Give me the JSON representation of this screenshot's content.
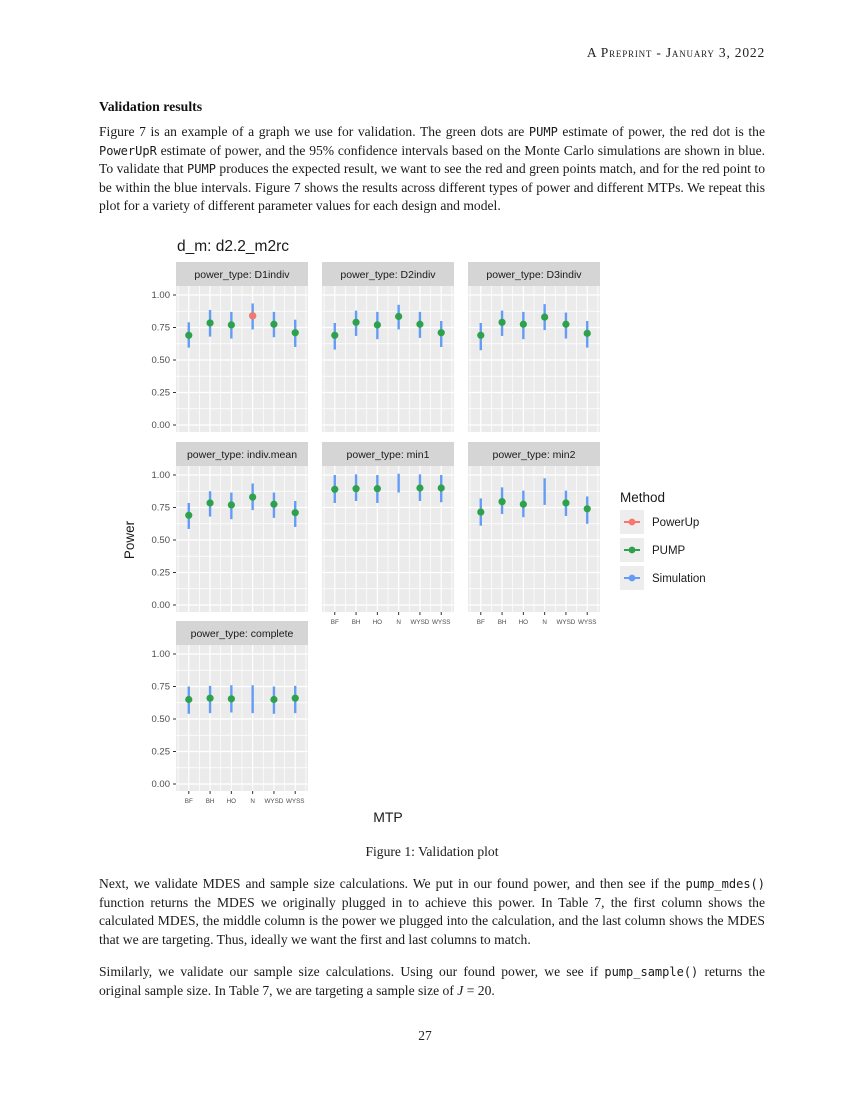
{
  "header": {
    "text": "A Preprint - January 3, 2022"
  },
  "section": {
    "heading": "Validation results"
  },
  "paragraphs": [
    [
      {
        "t": "Figure 7 is an example of a graph we use for validation.  The green dots are "
      },
      {
        "c": "PUMP"
      },
      {
        "t": " estimate of power, the red dot is the "
      },
      {
        "c": "PowerUpR"
      },
      {
        "t": " estimate of power, and the 95% confidence intervals based on the Monte Carlo simulations are shown in blue.  To validate that "
      },
      {
        "c": "PUMP"
      },
      {
        "t": " produces the expected result, we want to see the red and green points match, and for the red point to be within the blue intervals.  Figure 7 shows the results across different types of power and different MTPs.  We repeat this plot for a variety of different parameter values for each design and model."
      }
    ],
    [
      {
        "t": "Next, we validate MDES and sample size calculations.  We put in our found power, and then see if the "
      },
      {
        "c": "pump_mdes()"
      },
      {
        "t": " function returns the MDES we originally plugged in to achieve this power.  In Table 7, the first column shows the calculated MDES, the middle column is the power we plugged into the calculation, and the last column shows the MDES that we are targeting.  Thus, ideally we want the first and last columns to match."
      }
    ],
    [
      {
        "t": "Similarly, we validate our sample size calculations.  Using our found power, we see if "
      },
      {
        "c": "pump_sample()"
      },
      {
        "t": " returns the original sample size.  In Table 7, we are targeting a sample size of "
      },
      {
        "i": "J"
      },
      {
        "t": " = 20."
      }
    ]
  ],
  "figure": {
    "caption": "Figure 1: Validation plot"
  },
  "footer": {
    "page_number": "27"
  },
  "chart_data": {
    "type": "scatter",
    "title": "d_m: d2.2_m2rc",
    "xlabel": "MTP",
    "ylabel": "Power",
    "categories": [
      "BF",
      "BH",
      "HO",
      "N",
      "WYSD",
      "WYSS"
    ],
    "y_ticks": [
      "1.00",
      "0.75",
      "0.50",
      "0.25",
      "0.00"
    ],
    "ylim": [
      0,
      1.01
    ],
    "grid": true,
    "legend": {
      "title": "Method",
      "position": "right",
      "entries": [
        {
          "label": "PowerUp",
          "color": "#F8766D"
        },
        {
          "label": "PUMP",
          "color": "#2DA24B"
        },
        {
          "label": "Simulation",
          "color": "#659DF6"
        }
      ]
    },
    "colors": {
      "powerup": "#F8766D",
      "pump": "#2DA24B",
      "simulation": "#659DF6",
      "panel_bg": "#EBEBEB",
      "strip_bg": "#D5D5D5",
      "grid": "#FFFFFF",
      "tick": "#333333",
      "tick_label": "#4D4D4D",
      "text": "#1A1A1A",
      "legend_key_bg": "#EDEDED"
    },
    "panels": [
      {
        "strip": "power_type: D1indiv",
        "row": 0,
        "col": 0,
        "pump": [
          0.69,
          0.785,
          0.77,
          0.84,
          0.775,
          0.71
        ],
        "powerup": [
          null,
          null,
          null,
          0.84,
          null,
          null
        ],
        "sim_lo": [
          0.595,
          0.68,
          0.665,
          0.735,
          0.675,
          0.6
        ],
        "sim_hi": [
          0.79,
          0.885,
          0.87,
          0.935,
          0.87,
          0.81
        ]
      },
      {
        "strip": "power_type: D2indiv",
        "row": 0,
        "col": 1,
        "pump": [
          0.69,
          0.79,
          0.77,
          0.835,
          0.775,
          0.71
        ],
        "sim_lo": [
          0.58,
          0.685,
          0.66,
          0.735,
          0.67,
          0.6
        ],
        "sim_hi": [
          0.785,
          0.88,
          0.87,
          0.925,
          0.87,
          0.8
        ]
      },
      {
        "strip": "power_type: D3indiv",
        "row": 0,
        "col": 2,
        "pump": [
          0.69,
          0.79,
          0.775,
          0.83,
          0.775,
          0.705
        ],
        "sim_lo": [
          0.575,
          0.685,
          0.66,
          0.73,
          0.665,
          0.595
        ],
        "sim_hi": [
          0.785,
          0.88,
          0.87,
          0.93,
          0.865,
          0.8
        ]
      },
      {
        "strip": "power_type: indiv.mean",
        "row": 1,
        "col": 0,
        "pump": [
          0.69,
          0.785,
          0.77,
          0.83,
          0.775,
          0.71
        ],
        "sim_lo": [
          0.585,
          0.68,
          0.66,
          0.73,
          0.67,
          0.6
        ],
        "sim_hi": [
          0.785,
          0.875,
          0.865,
          0.935,
          0.865,
          0.8
        ]
      },
      {
        "strip": "power_type: min1",
        "row": 1,
        "col": 1,
        "pump": [
          0.89,
          0.895,
          0.895,
          null,
          0.9,
          0.9
        ],
        "sim_lo": [
          0.785,
          0.8,
          0.785,
          0.865,
          0.8,
          0.79
        ],
        "sim_hi": [
          1.0,
          1.005,
          1.0,
          1.01,
          1.005,
          1.0
        ]
      },
      {
        "strip": "power_type: min2",
        "row": 1,
        "col": 2,
        "pump": [
          0.715,
          0.795,
          0.775,
          null,
          0.785,
          0.74
        ],
        "sim_lo": [
          0.61,
          0.7,
          0.675,
          0.77,
          0.685,
          0.625
        ],
        "sim_hi": [
          0.82,
          0.905,
          0.88,
          0.975,
          0.88,
          0.835
        ]
      },
      {
        "strip": "power_type: complete",
        "row": 2,
        "col": 0,
        "pump": [
          0.65,
          0.66,
          0.655,
          null,
          0.65,
          0.66
        ],
        "sim_lo": [
          0.54,
          0.545,
          0.55,
          0.545,
          0.54,
          0.545
        ],
        "sim_hi": [
          0.75,
          0.755,
          0.76,
          0.76,
          0.75,
          0.755
        ]
      }
    ]
  }
}
